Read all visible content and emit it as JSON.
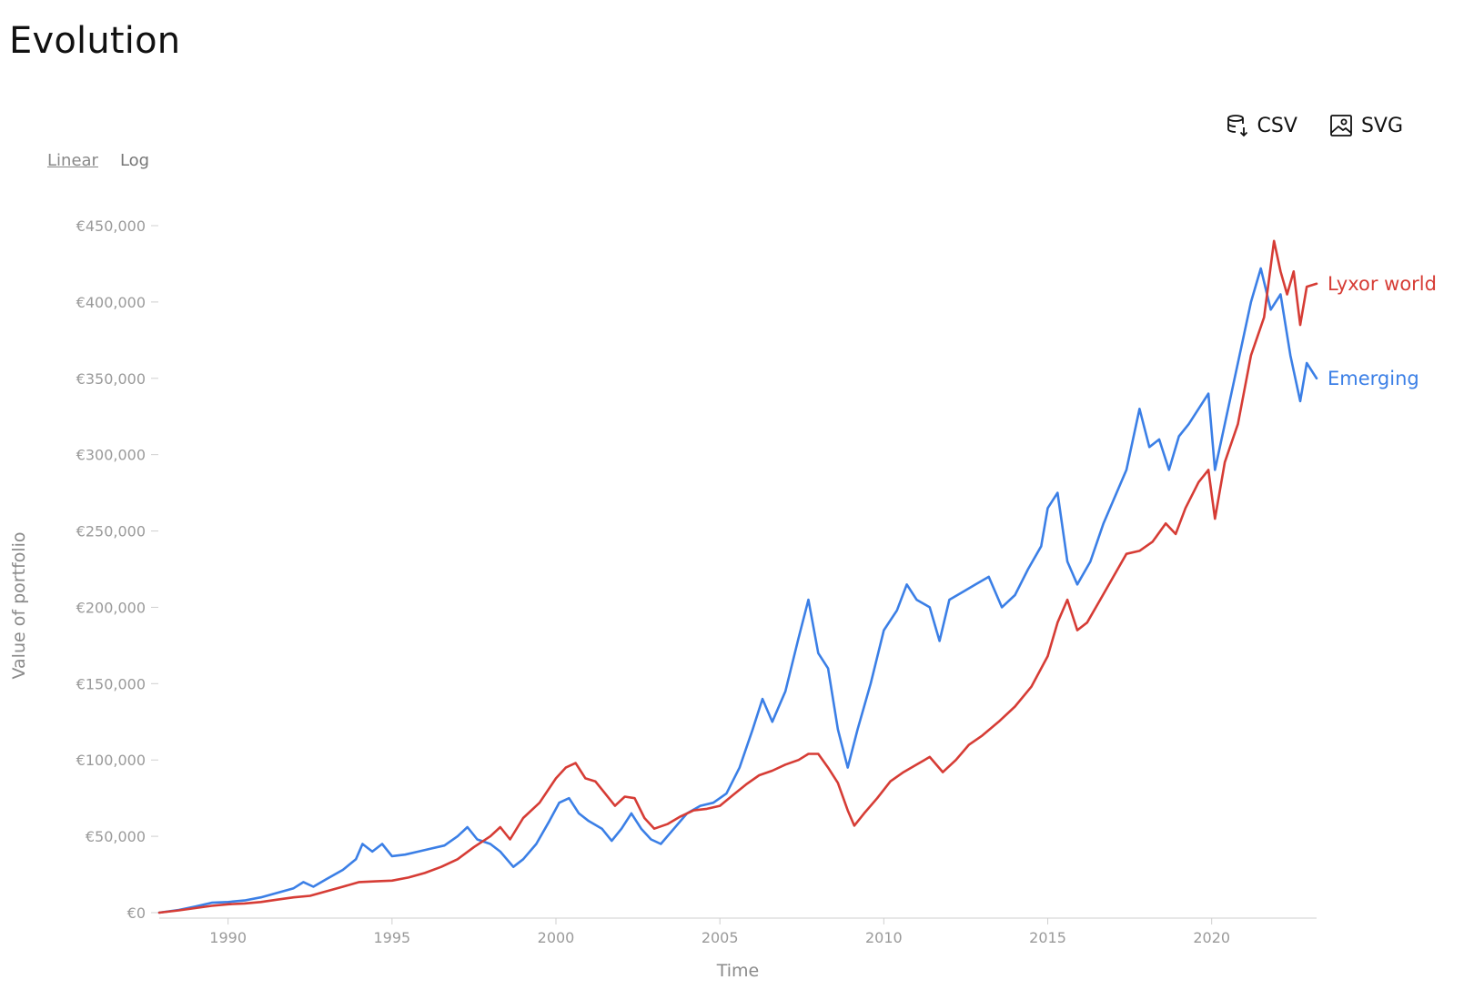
{
  "header": {
    "title": "Evolution"
  },
  "toolbar": {
    "csv_label": "CSV",
    "svg_label": "SVG",
    "csv_icon": "database-download-icon",
    "svg_icon": "image-icon"
  },
  "scale": {
    "linear_label": "Linear",
    "log_label": "Log",
    "active": "linear"
  },
  "chart_data": {
    "type": "line",
    "title": "",
    "xlabel": "Time",
    "ylabel": "Value of portfolio",
    "xlim": [
      1987.9,
      2023.2
    ],
    "ylim": [
      0,
      450000
    ],
    "x_ticks": [
      1990,
      1995,
      2000,
      2005,
      2010,
      2015,
      2020
    ],
    "x_tick_labels": [
      "1990",
      "1995",
      "2000",
      "2005",
      "2010",
      "2015",
      "2020"
    ],
    "y_ticks": [
      0,
      50000,
      100000,
      150000,
      200000,
      250000,
      300000,
      350000,
      400000,
      450000
    ],
    "y_tick_labels": [
      "€0",
      "€50,000",
      "€100,000",
      "€150,000",
      "€200,000",
      "€250,000",
      "€300,000",
      "€350,000",
      "€400,000",
      "€450,000"
    ],
    "grid": false,
    "legend": "inline-right",
    "series": [
      {
        "name": "Lyxor world",
        "color": "#d63c35",
        "points": [
          [
            1987.9,
            0
          ],
          [
            1988.5,
            1500
          ],
          [
            1989.0,
            3000
          ],
          [
            1989.5,
            4500
          ],
          [
            1990.0,
            5500
          ],
          [
            1990.5,
            6000
          ],
          [
            1991.0,
            7000
          ],
          [
            1991.5,
            8500
          ],
          [
            1992.0,
            10000
          ],
          [
            1992.5,
            11000
          ],
          [
            1993.0,
            14000
          ],
          [
            1993.5,
            17000
          ],
          [
            1994.0,
            20000
          ],
          [
            1994.5,
            20500
          ],
          [
            1995.0,
            21000
          ],
          [
            1995.5,
            23000
          ],
          [
            1996.0,
            26000
          ],
          [
            1996.5,
            30000
          ],
          [
            1997.0,
            35000
          ],
          [
            1997.5,
            43000
          ],
          [
            1998.0,
            50000
          ],
          [
            1998.3,
            56000
          ],
          [
            1998.6,
            48000
          ],
          [
            1999.0,
            62000
          ],
          [
            1999.5,
            72000
          ],
          [
            2000.0,
            88000
          ],
          [
            2000.3,
            95000
          ],
          [
            2000.6,
            98000
          ],
          [
            2000.9,
            88000
          ],
          [
            2001.2,
            86000
          ],
          [
            2001.5,
            78000
          ],
          [
            2001.8,
            70000
          ],
          [
            2002.1,
            76000
          ],
          [
            2002.4,
            75000
          ],
          [
            2002.7,
            62000
          ],
          [
            2003.0,
            55000
          ],
          [
            2003.4,
            58000
          ],
          [
            2003.8,
            63000
          ],
          [
            2004.2,
            67000
          ],
          [
            2004.6,
            68000
          ],
          [
            2005.0,
            70000
          ],
          [
            2005.4,
            77000
          ],
          [
            2005.8,
            84000
          ],
          [
            2006.2,
            90000
          ],
          [
            2006.6,
            93000
          ],
          [
            2007.0,
            97000
          ],
          [
            2007.4,
            100000
          ],
          [
            2007.7,
            104000
          ],
          [
            2008.0,
            104000
          ],
          [
            2008.3,
            95000
          ],
          [
            2008.6,
            85000
          ],
          [
            2008.9,
            67000
          ],
          [
            2009.1,
            57000
          ],
          [
            2009.4,
            65000
          ],
          [
            2009.8,
            75000
          ],
          [
            2010.2,
            86000
          ],
          [
            2010.6,
            92000
          ],
          [
            2011.0,
            97000
          ],
          [
            2011.4,
            102000
          ],
          [
            2011.8,
            92000
          ],
          [
            2012.2,
            100000
          ],
          [
            2012.6,
            110000
          ],
          [
            2013.0,
            116000
          ],
          [
            2013.5,
            125000
          ],
          [
            2014.0,
            135000
          ],
          [
            2014.5,
            148000
          ],
          [
            2015.0,
            168000
          ],
          [
            2015.3,
            190000
          ],
          [
            2015.6,
            205000
          ],
          [
            2015.9,
            185000
          ],
          [
            2016.2,
            190000
          ],
          [
            2016.6,
            205000
          ],
          [
            2017.0,
            220000
          ],
          [
            2017.4,
            235000
          ],
          [
            2017.8,
            237000
          ],
          [
            2018.2,
            243000
          ],
          [
            2018.6,
            255000
          ],
          [
            2018.9,
            248000
          ],
          [
            2019.2,
            265000
          ],
          [
            2019.6,
            282000
          ],
          [
            2019.9,
            290000
          ],
          [
            2020.1,
            258000
          ],
          [
            2020.4,
            295000
          ],
          [
            2020.8,
            320000
          ],
          [
            2021.2,
            365000
          ],
          [
            2021.6,
            390000
          ],
          [
            2021.9,
            440000
          ],
          [
            2022.1,
            420000
          ],
          [
            2022.3,
            405000
          ],
          [
            2022.5,
            420000
          ],
          [
            2022.7,
            385000
          ],
          [
            2022.9,
            410000
          ],
          [
            2023.2,
            412000
          ]
        ]
      },
      {
        "name": "Emerging",
        "color": "#3b7fe6",
        "points": [
          [
            1987.9,
            0
          ],
          [
            1988.5,
            1800
          ],
          [
            1989.0,
            4000
          ],
          [
            1989.5,
            6500
          ],
          [
            1990.0,
            7000
          ],
          [
            1990.5,
            8000
          ],
          [
            1991.0,
            10000
          ],
          [
            1991.5,
            13000
          ],
          [
            1992.0,
            16000
          ],
          [
            1992.3,
            20000
          ],
          [
            1992.6,
            17000
          ],
          [
            1993.0,
            22000
          ],
          [
            1993.5,
            28000
          ],
          [
            1993.9,
            35000
          ],
          [
            1994.1,
            45000
          ],
          [
            1994.4,
            40000
          ],
          [
            1994.7,
            45000
          ],
          [
            1995.0,
            37000
          ],
          [
            1995.4,
            38000
          ],
          [
            1995.8,
            40000
          ],
          [
            1996.2,
            42000
          ],
          [
            1996.6,
            44000
          ],
          [
            1997.0,
            50000
          ],
          [
            1997.3,
            56000
          ],
          [
            1997.6,
            48000
          ],
          [
            1998.0,
            45000
          ],
          [
            1998.3,
            40000
          ],
          [
            1998.7,
            30000
          ],
          [
            1999.0,
            35000
          ],
          [
            1999.4,
            45000
          ],
          [
            1999.8,
            60000
          ],
          [
            2000.1,
            72000
          ],
          [
            2000.4,
            75000
          ],
          [
            2000.7,
            65000
          ],
          [
            2001.0,
            60000
          ],
          [
            2001.4,
            55000
          ],
          [
            2001.7,
            47000
          ],
          [
            2002.0,
            55000
          ],
          [
            2002.3,
            65000
          ],
          [
            2002.6,
            55000
          ],
          [
            2002.9,
            48000
          ],
          [
            2003.2,
            45000
          ],
          [
            2003.6,
            55000
          ],
          [
            2004.0,
            65000
          ],
          [
            2004.4,
            70000
          ],
          [
            2004.8,
            72000
          ],
          [
            2005.2,
            78000
          ],
          [
            2005.6,
            95000
          ],
          [
            2006.0,
            120000
          ],
          [
            2006.3,
            140000
          ],
          [
            2006.6,
            125000
          ],
          [
            2007.0,
            145000
          ],
          [
            2007.4,
            180000
          ],
          [
            2007.7,
            205000
          ],
          [
            2008.0,
            170000
          ],
          [
            2008.3,
            160000
          ],
          [
            2008.6,
            120000
          ],
          [
            2008.9,
            95000
          ],
          [
            2009.2,
            120000
          ],
          [
            2009.6,
            150000
          ],
          [
            2010.0,
            185000
          ],
          [
            2010.4,
            198000
          ],
          [
            2010.7,
            215000
          ],
          [
            2011.0,
            205000
          ],
          [
            2011.4,
            200000
          ],
          [
            2011.7,
            178000
          ],
          [
            2012.0,
            205000
          ],
          [
            2012.4,
            210000
          ],
          [
            2012.8,
            215000
          ],
          [
            2013.2,
            220000
          ],
          [
            2013.6,
            200000
          ],
          [
            2014.0,
            208000
          ],
          [
            2014.4,
            225000
          ],
          [
            2014.8,
            240000
          ],
          [
            2015.0,
            265000
          ],
          [
            2015.3,
            275000
          ],
          [
            2015.6,
            230000
          ],
          [
            2015.9,
            215000
          ],
          [
            2016.3,
            230000
          ],
          [
            2016.7,
            255000
          ],
          [
            2017.0,
            270000
          ],
          [
            2017.4,
            290000
          ],
          [
            2017.8,
            330000
          ],
          [
            2018.1,
            305000
          ],
          [
            2018.4,
            310000
          ],
          [
            2018.7,
            290000
          ],
          [
            2019.0,
            312000
          ],
          [
            2019.3,
            320000
          ],
          [
            2019.6,
            330000
          ],
          [
            2019.9,
            340000
          ],
          [
            2020.1,
            290000
          ],
          [
            2020.4,
            320000
          ],
          [
            2020.8,
            360000
          ],
          [
            2021.2,
            400000
          ],
          [
            2021.5,
            422000
          ],
          [
            2021.8,
            395000
          ],
          [
            2022.1,
            405000
          ],
          [
            2022.4,
            365000
          ],
          [
            2022.7,
            335000
          ],
          [
            2022.9,
            360000
          ],
          [
            2023.2,
            350000
          ]
        ]
      }
    ]
  }
}
